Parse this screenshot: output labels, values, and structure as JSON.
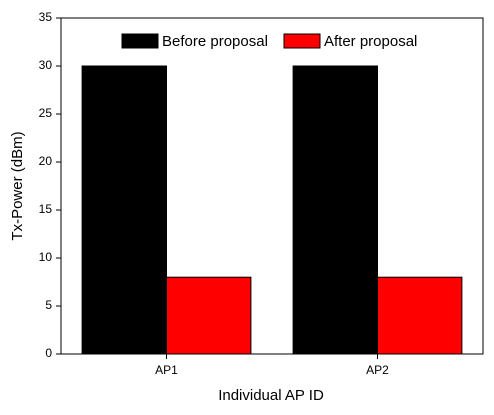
{
  "chart_data": {
    "type": "bar",
    "xlabel": "Individual AP ID",
    "ylabel": "Tx-Power (dBm)",
    "categories": [
      "AP1",
      "AP2"
    ],
    "series": [
      {
        "name": "Before proposal",
        "color": "#000000",
        "values": [
          30,
          30
        ]
      },
      {
        "name": "After proposal",
        "color": "#ff0000",
        "values": [
          8,
          8
        ]
      }
    ],
    "ylim": [
      0,
      35
    ],
    "yticks": [
      0,
      5,
      10,
      15,
      20,
      25,
      30,
      35
    ],
    "legend": "top"
  }
}
